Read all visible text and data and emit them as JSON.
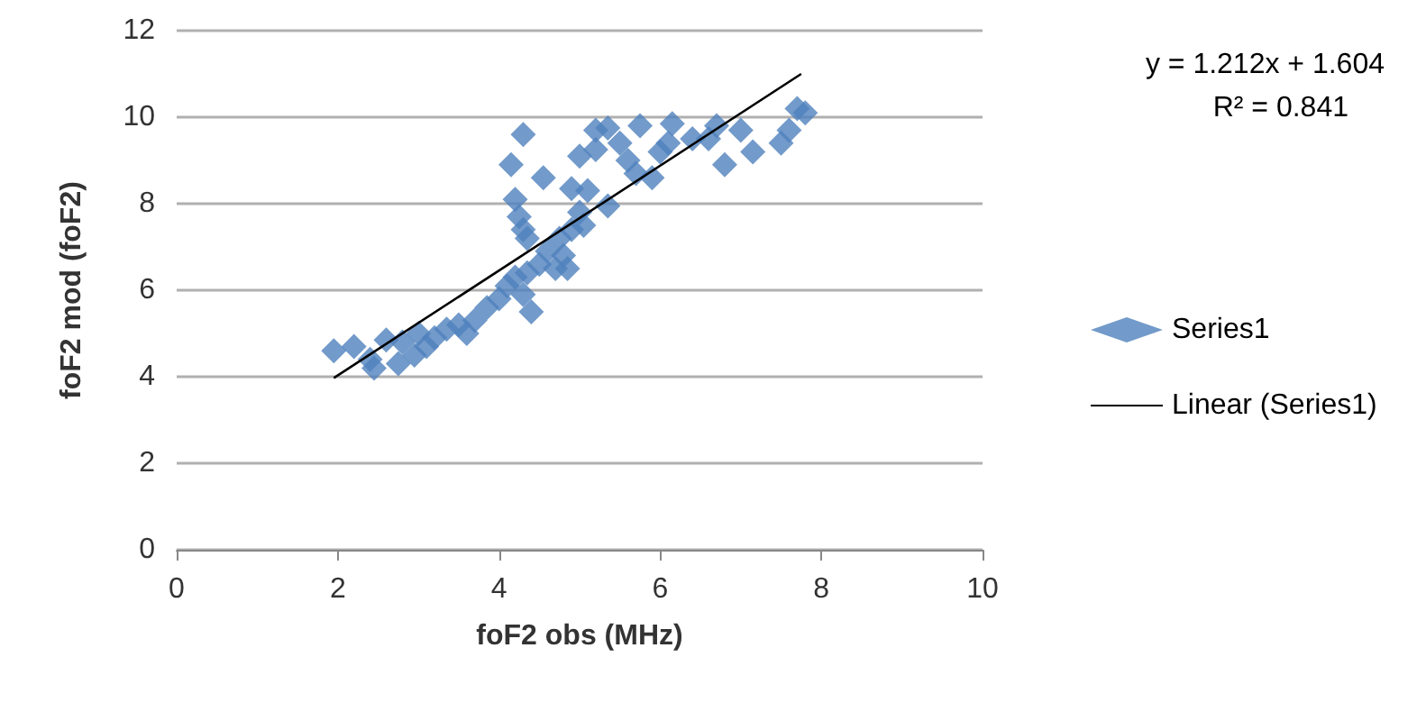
{
  "chart_data": {
    "type": "scatter",
    "xlabel": "foF2 obs (MHz)",
    "ylabel": "foF2 mod (foF2)",
    "annotations": [
      "y = 1.212x + 1.604",
      "R² = 0.841"
    ],
    "xlim": [
      0,
      10
    ],
    "xticks": [
      0,
      2,
      4,
      6,
      8,
      10
    ],
    "ylim": [
      0,
      12
    ],
    "yticks": [
      0,
      2,
      4,
      6,
      8,
      10,
      12
    ],
    "grid": "y",
    "legend": "right",
    "marker": "diamond",
    "series": [
      {
        "name": "Series1",
        "color": "#4f81bd",
        "x": [
          1.95,
          2.2,
          2.4,
          2.45,
          2.6,
          2.8,
          2.75,
          2.95,
          3.0,
          3.1,
          3.2,
          3.35,
          3.5,
          3.6,
          3.7,
          3.85,
          4.0,
          4.1,
          4.2,
          4.3,
          4.4,
          4.35,
          4.5,
          4.6,
          4.75,
          4.9,
          4.7,
          4.85,
          5.0,
          4.9,
          4.15,
          4.2,
          4.25,
          4.3,
          4.3,
          4.35,
          4.55,
          5.0,
          5.2,
          5.1,
          5.35,
          5.35,
          5.5,
          5.6,
          5.7,
          5.75,
          5.9,
          6.0,
          6.15,
          6.1,
          6.4,
          6.6,
          6.7,
          6.8,
          7.0,
          7.15,
          7.5,
          7.6,
          7.7,
          7.8,
          4.8,
          5.05,
          5.2
        ],
        "values": [
          4.6,
          4.7,
          4.4,
          4.2,
          4.85,
          4.8,
          4.3,
          4.5,
          5.0,
          4.7,
          4.9,
          5.1,
          5.2,
          5.0,
          5.3,
          5.6,
          5.8,
          6.1,
          6.3,
          5.9,
          5.5,
          6.4,
          6.6,
          6.9,
          7.2,
          7.4,
          6.5,
          6.5,
          7.8,
          8.35,
          8.9,
          8.1,
          7.7,
          7.4,
          9.6,
          7.2,
          8.6,
          9.1,
          9.7,
          8.3,
          7.95,
          9.75,
          9.4,
          9.0,
          8.7,
          9.8,
          8.6,
          9.2,
          9.85,
          9.4,
          9.5,
          9.5,
          9.8,
          8.9,
          9.7,
          9.2,
          9.4,
          9.7,
          10.2,
          10.1,
          6.8,
          7.5,
          9.25
        ]
      },
      {
        "name": "Linear (Series1)",
        "type": "line",
        "color": "#000000",
        "x": [
          1.95,
          7.75
        ],
        "values": [
          3.97,
          11.0
        ],
        "line_style": "solid",
        "marker": "none"
      }
    ]
  }
}
